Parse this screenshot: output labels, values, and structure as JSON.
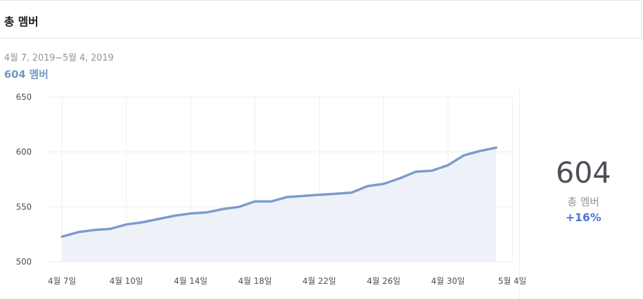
{
  "header": {
    "title": "총 멤버"
  },
  "summary": {
    "date_range": "4월 7, 2019~5월 4, 2019",
    "member_count_label": "604 멤버"
  },
  "side_stat": {
    "value": "604",
    "label": "총 멤버",
    "change": "+16%"
  },
  "colors": {
    "line": "#7d9bcc",
    "area": "#eef2f8",
    "accent": "#4a76d4",
    "summary_text": "#7596c8"
  },
  "chart_data": {
    "type": "area",
    "title": "",
    "xlabel": "",
    "ylabel": "",
    "ylim": [
      500,
      650
    ],
    "yticks": [
      500,
      550,
      600,
      650
    ],
    "grid": true,
    "x_tick_labels": [
      "4월 7일",
      "4월 10일",
      "4월 14일",
      "4월 18일",
      "4월 22일",
      "4월 26일",
      "4월 30일",
      "5월 4일"
    ],
    "x_tick_indices": [
      0,
      4,
      8,
      12,
      16,
      20,
      24,
      28
    ],
    "series": [
      {
        "values": [
          523,
          527,
          529,
          530,
          534,
          536,
          539,
          542,
          544,
          545,
          548,
          550,
          555,
          555,
          559,
          560,
          561,
          562,
          563,
          569,
          571,
          576,
          582,
          583,
          588,
          597,
          601,
          604
        ]
      }
    ]
  }
}
